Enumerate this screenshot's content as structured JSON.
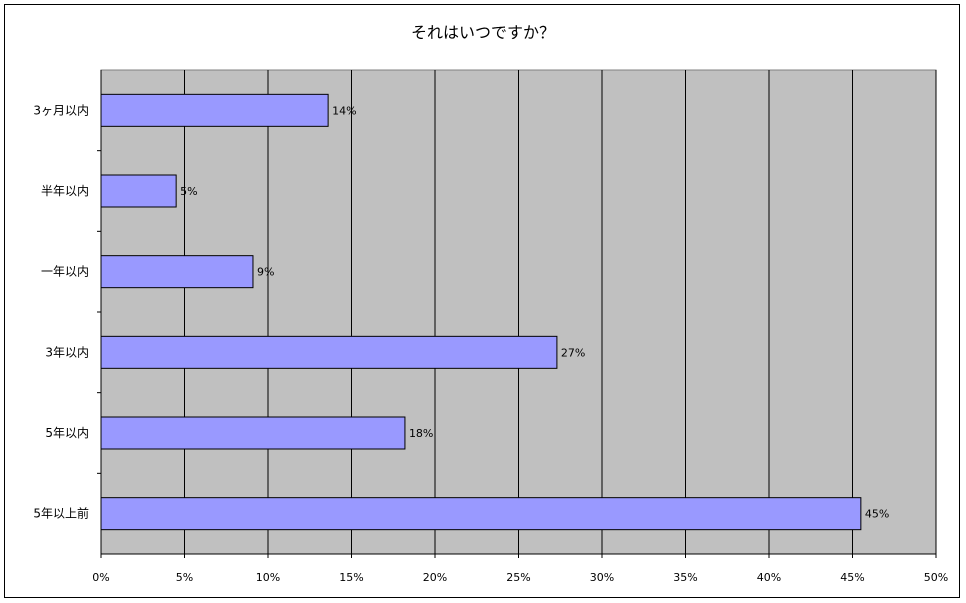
{
  "chart_data": {
    "type": "bar",
    "orientation": "horizontal",
    "title": "それはいつですか？",
    "xlabel": "",
    "ylabel": "",
    "categories": [
      "3ヶ月以内",
      "半年以内",
      "一年以内",
      "3年以内",
      "5年以内",
      "5年以上前"
    ],
    "values": [
      13.6,
      4.5,
      9.1,
      27.3,
      18.2,
      45.5
    ],
    "data_labels": [
      "14%",
      "5%",
      "9%",
      "27%",
      "18%",
      "45%"
    ],
    "xlim": [
      0,
      50
    ],
    "x_ticks": [
      "0%",
      "5%",
      "10%",
      "15%",
      "20%",
      "25%",
      "30%",
      "35%",
      "40%",
      "45%",
      "50%"
    ],
    "grid": "vertical",
    "legend": "none",
    "colors": {
      "bar": "#9999ff",
      "plot_background": "#c0c0c0",
      "grid": "#000000"
    }
  }
}
